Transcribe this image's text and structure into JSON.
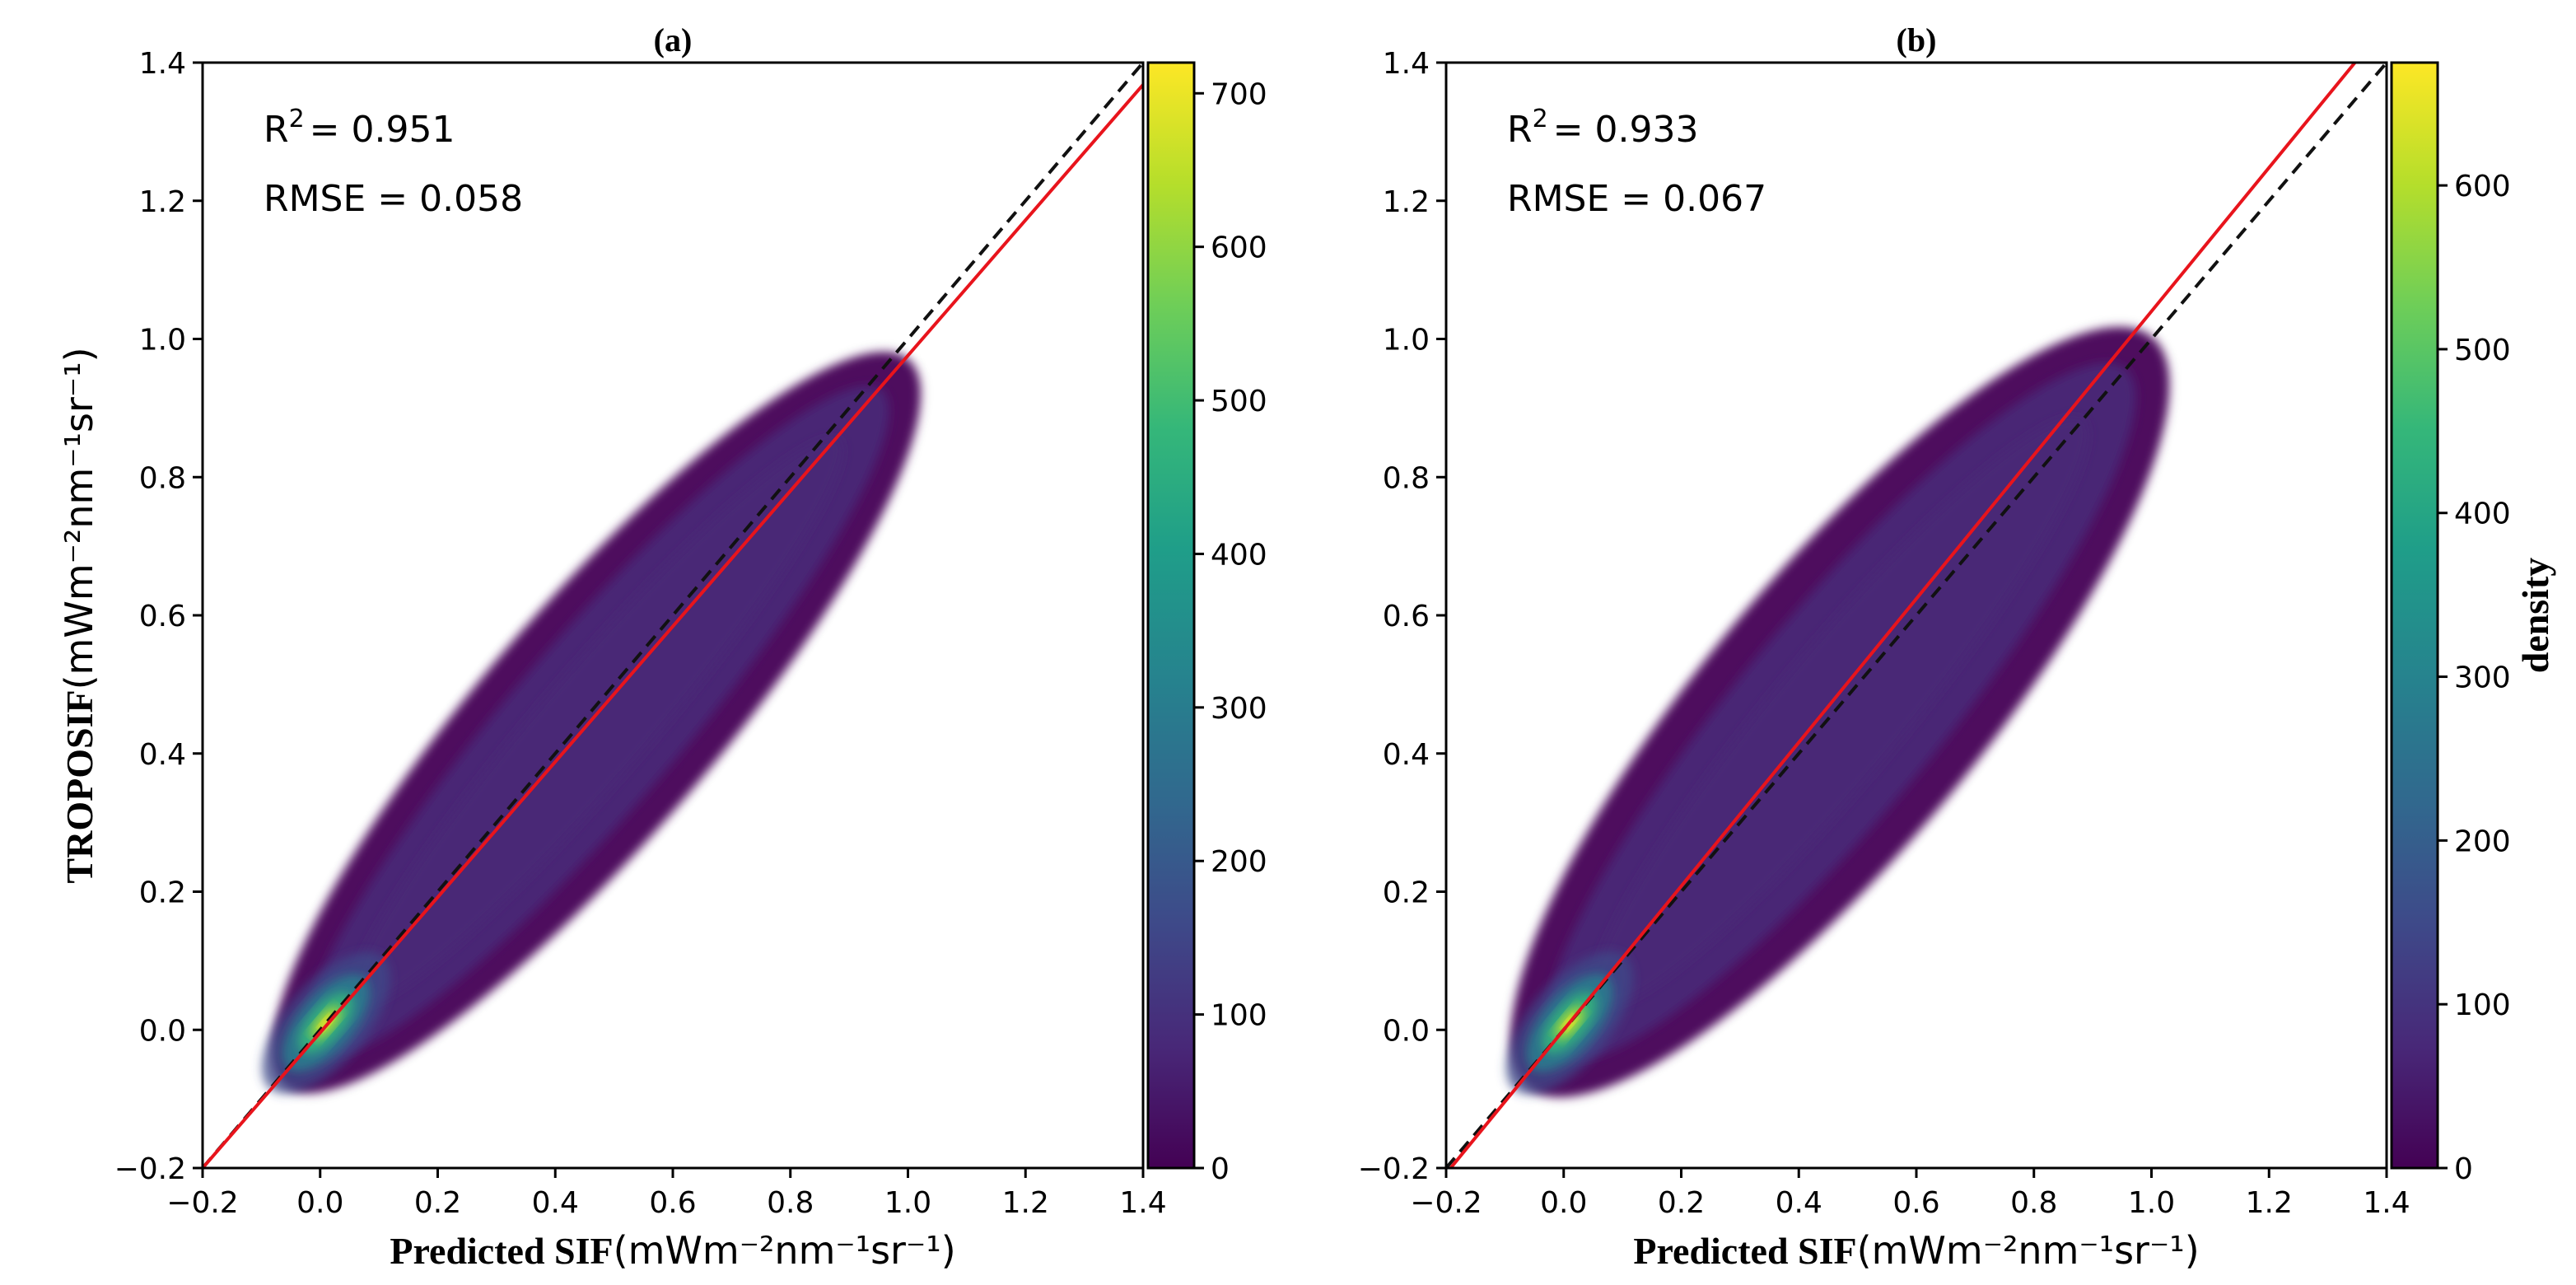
{
  "chart_data": [
    {
      "type": "scatter",
      "panel": "(a)",
      "title": "(a)",
      "xlabel_bold": "Predicted SIF",
      "xlabel_unit": "(mWm⁻²nm⁻¹sr⁻¹)",
      "ylabel_bold": "TROPOSIF",
      "ylabel_unit": "(mWm⁻²nm⁻¹sr⁻¹)",
      "xlim": [
        -0.2,
        1.4
      ],
      "ylim": [
        -0.2,
        1.4
      ],
      "xticks": [
        "−0.2",
        "0.0",
        "0.2",
        "0.4",
        "0.6",
        "0.8",
        "1.0",
        "1.2",
        "1.4"
      ],
      "yticks": [
        "−0.2",
        "0.0",
        "0.2",
        "0.4",
        "0.6",
        "0.8",
        "1.0",
        "1.2",
        "1.4"
      ],
      "r2_label": "R",
      "r2_value": "= 0.951",
      "rmse_text": "RMSE = 0.058",
      "fit_line": {
        "color": "#e8141c",
        "slope": 0.98,
        "intercept": -0.004
      },
      "identity_line": {
        "color": "#111111",
        "style": "dashed",
        "slope": 1,
        "intercept": 0
      },
      "cloud": {
        "center": [
          0.0,
          0.0
        ],
        "end": [
          0.9,
          0.89
        ],
        "spread": 0.055
      },
      "colorbar": {
        "label": "",
        "range": [
          0,
          720
        ],
        "ticks": [
          "0",
          "100",
          "200",
          "300",
          "400",
          "500",
          "600",
          "700"
        ]
      }
    },
    {
      "type": "scatter",
      "panel": "(b)",
      "title": "(b)",
      "xlabel_bold": "Predicted SIF",
      "xlabel_unit": "(mWm⁻²nm⁻¹sr⁻¹)",
      "ylabel_bold": "",
      "ylabel_unit": "",
      "xlim": [
        -0.2,
        1.4
      ],
      "ylim": [
        -0.2,
        1.4
      ],
      "xticks": [
        "−0.2",
        "0.0",
        "0.2",
        "0.4",
        "0.6",
        "0.8",
        "1.0",
        "1.2",
        "1.4"
      ],
      "yticks": [
        "−0.2",
        "0.0",
        "0.2",
        "0.4",
        "0.6",
        "0.8",
        "1.0",
        "1.2",
        "1.4"
      ],
      "r2_label": "R",
      "r2_value": "= 0.933",
      "rmse_text": "RMSE = 0.067",
      "fit_line": {
        "color": "#e8141c",
        "slope": 1.04,
        "intercept": 0.0
      },
      "identity_line": {
        "color": "#111111",
        "style": "dashed",
        "slope": 1,
        "intercept": 0
      },
      "cloud": {
        "center": [
          0.0,
          0.0
        ],
        "end": [
          0.9,
          0.92
        ],
        "spread": 0.065
      },
      "colorbar": {
        "label": "density",
        "range": [
          0,
          675
        ],
        "ticks": [
          "0",
          "100",
          "200",
          "300",
          "400",
          "500",
          "600"
        ]
      }
    }
  ],
  "colors": {
    "viridis": [
      "#440154",
      "#482878",
      "#3e4989",
      "#31688e",
      "#26828e",
      "#1f9e89",
      "#35b779",
      "#6ece58",
      "#b5de2b",
      "#fde725"
    ]
  }
}
